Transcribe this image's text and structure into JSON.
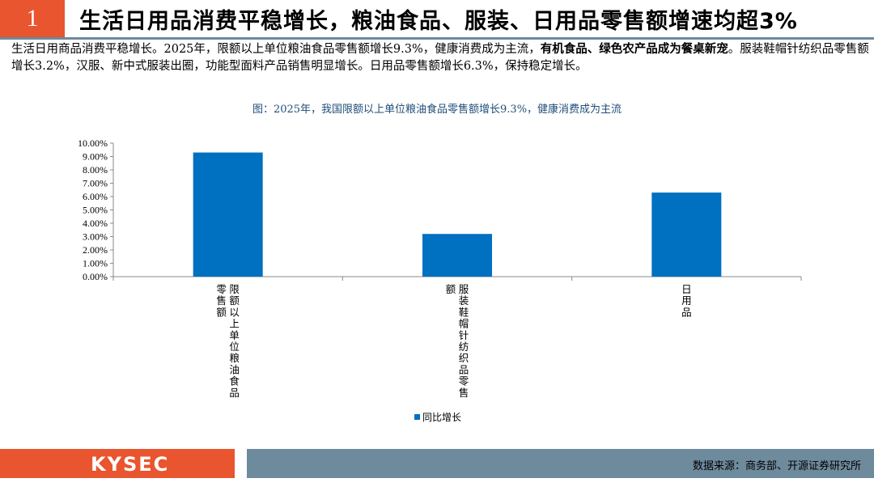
{
  "header": {
    "number": "1",
    "title": "生活日用品消费平稳增长，粮油食品、服装、日用品零售额增速均超3%"
  },
  "paragraph": {
    "part1": "生活日用商品消费平稳增长。2025年，限额以上单位粮油食品零售额增长9.3%，健康消费成为主流，",
    "bold": "有机食品、绿色农产品成为餐桌新宠",
    "part2": "。服装鞋帽针纺织品零售额增长3.2%，汉服、新中式服装出圈，功能型面料产品销售明显增长。日用品零售额增长6.3%，保持稳定增长。"
  },
  "chart_data": {
    "type": "bar",
    "title": "图：2025年，我国限额以上单位粮油食品零售额增长9.3%，健康消费成为主流",
    "categories": [
      "限额以上单位粮油食品零售额",
      "服装鞋帽针纺织品零售额",
      "日用品"
    ],
    "series": [
      {
        "name": "同比增长",
        "values": [
          9.3,
          3.2,
          6.3
        ]
      }
    ],
    "unit": "%",
    "ylim": [
      0,
      10
    ],
    "yticks": [
      "0.00%",
      "1.00%",
      "2.00%",
      "3.00%",
      "4.00%",
      "5.00%",
      "6.00%",
      "7.00%",
      "8.00%",
      "9.00%",
      "10.00%"
    ],
    "legend_position": "bottom",
    "bar_color": "#0070c0",
    "grid": false
  },
  "footer": {
    "logo": "KYSEC",
    "source": "数据来源：商务部、开源证券研究所",
    "accent_color": "#e8552e",
    "bar_color": "#6e8a9d"
  }
}
